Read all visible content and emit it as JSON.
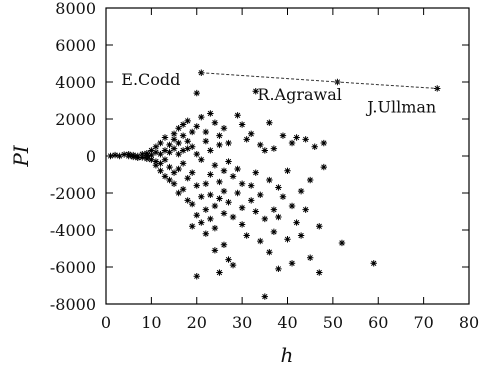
{
  "chart_data": {
    "type": "scatter",
    "title": "",
    "xlabel": "h",
    "ylabel": "PI",
    "xlim": [
      0,
      80
    ],
    "ylim": [
      -8000,
      8000
    ],
    "xticks": [
      0,
      10,
      20,
      30,
      40,
      50,
      60,
      70,
      80
    ],
    "yticks": [
      -8000,
      -6000,
      -4000,
      -2000,
      0,
      2000,
      4000,
      6000,
      8000
    ],
    "grid": false,
    "marker": "asterisk",
    "annotations": [
      {
        "text": "E.Codd",
        "x": 21,
        "y": 4500
      },
      {
        "text": "R.Agrawal",
        "x": 51,
        "y": 4000
      },
      {
        "text": "J.Ullman",
        "x": 73,
        "y": 3650
      }
    ],
    "trend_line": [
      [
        21,
        4500
      ],
      [
        51,
        4000
      ],
      [
        73,
        3650
      ]
    ],
    "points": [
      [
        1,
        0
      ],
      [
        2,
        50
      ],
      [
        3,
        0
      ],
      [
        4,
        80
      ],
      [
        5,
        0
      ],
      [
        5,
        100
      ],
      [
        6,
        -50
      ],
      [
        6,
        50
      ],
      [
        7,
        0
      ],
      [
        7,
        -100
      ],
      [
        8,
        100
      ],
      [
        8,
        -80
      ],
      [
        9,
        0
      ],
      [
        9,
        150
      ],
      [
        9,
        -150
      ],
      [
        10,
        300
      ],
      [
        10,
        -200
      ],
      [
        10,
        50
      ],
      [
        11,
        200
      ],
      [
        11,
        -300
      ],
      [
        11,
        500
      ],
      [
        11,
        -500
      ],
      [
        12,
        100
      ],
      [
        12,
        -400
      ],
      [
        12,
        700
      ],
      [
        12,
        -800
      ],
      [
        13,
        300
      ],
      [
        13,
        -200
      ],
      [
        13,
        1000
      ],
      [
        13,
        -1100
      ],
      [
        14,
        600
      ],
      [
        14,
        -600
      ],
      [
        14,
        200
      ],
      [
        14,
        -1300
      ],
      [
        15,
        900
      ],
      [
        15,
        -900
      ],
      [
        15,
        1200
      ],
      [
        15,
        -1500
      ],
      [
        15,
        400
      ],
      [
        16,
        700
      ],
      [
        16,
        -700
      ],
      [
        16,
        1500
      ],
      [
        16,
        -2000
      ],
      [
        16,
        100
      ],
      [
        17,
        300
      ],
      [
        17,
        -400
      ],
      [
        17,
        1100
      ],
      [
        17,
        -1800
      ],
      [
        17,
        1700
      ],
      [
        18,
        800
      ],
      [
        18,
        -1200
      ],
      [
        18,
        400
      ],
      [
        18,
        -2400
      ],
      [
        18,
        1900
      ],
      [
        19,
        500
      ],
      [
        19,
        -900
      ],
      [
        19,
        1300
      ],
      [
        19,
        -2600
      ],
      [
        19,
        -3800
      ],
      [
        20,
        100
      ],
      [
        20,
        -1600
      ],
      [
        20,
        1600
      ],
      [
        20,
        -3200
      ],
      [
        20,
        3400
      ],
      [
        20,
        -6500
      ],
      [
        21,
        4500
      ],
      [
        21,
        -200
      ],
      [
        21,
        -2200
      ],
      [
        21,
        2100
      ],
      [
        21,
        -3600
      ],
      [
        22,
        800
      ],
      [
        22,
        -1500
      ],
      [
        22,
        -2900
      ],
      [
        22,
        1300
      ],
      [
        22,
        -4200
      ],
      [
        23,
        300
      ],
      [
        23,
        -2100
      ],
      [
        23,
        2300
      ],
      [
        23,
        -3400
      ],
      [
        23,
        -1000
      ],
      [
        24,
        -500
      ],
      [
        24,
        -2700
      ],
      [
        24,
        1800
      ],
      [
        24,
        -3900
      ],
      [
        24,
        -5100
      ],
      [
        25,
        600
      ],
      [
        25,
        -1400
      ],
      [
        25,
        -2300
      ],
      [
        25,
        -6300
      ],
      [
        25,
        1100
      ],
      [
        26,
        -800
      ],
      [
        26,
        -1900
      ],
      [
        26,
        1500
      ],
      [
        26,
        -3100
      ],
      [
        26,
        -4800
      ],
      [
        27,
        -300
      ],
      [
        27,
        -2500
      ],
      [
        27,
        -5600
      ],
      [
        27,
        700
      ],
      [
        28,
        -1100
      ],
      [
        28,
        -3300
      ],
      [
        28,
        -5900
      ],
      [
        29,
        2200
      ],
      [
        29,
        -700
      ],
      [
        29,
        -2000
      ],
      [
        30,
        -1500
      ],
      [
        30,
        -2800
      ],
      [
        30,
        1700
      ],
      [
        30,
        -3700
      ],
      [
        31,
        900
      ],
      [
        31,
        -4300
      ],
      [
        32,
        -2400
      ],
      [
        32,
        1200
      ],
      [
        32,
        -1600
      ],
      [
        33,
        3500
      ],
      [
        33,
        -3000
      ],
      [
        33,
        -900
      ],
      [
        34,
        600
      ],
      [
        34,
        -4600
      ],
      [
        34,
        -2100
      ],
      [
        35,
        -7600
      ],
      [
        35,
        -3400
      ],
      [
        35,
        300
      ],
      [
        36,
        -1300
      ],
      [
        36,
        -5200
      ],
      [
        36,
        1800
      ],
      [
        37,
        -2900
      ],
      [
        37,
        -4100
      ],
      [
        37,
        400
      ],
      [
        38,
        -6100
      ],
      [
        38,
        -1700
      ],
      [
        38,
        -3300
      ],
      [
        39,
        -2200
      ],
      [
        39,
        1100
      ],
      [
        40,
        -4500
      ],
      [
        40,
        -800
      ],
      [
        41,
        -2700
      ],
      [
        41,
        -5800
      ],
      [
        41,
        700
      ],
      [
        42,
        1000
      ],
      [
        42,
        -3600
      ],
      [
        43,
        -1900
      ],
      [
        43,
        -4300
      ],
      [
        44,
        900
      ],
      [
        44,
        -2900
      ],
      [
        45,
        -5500
      ],
      [
        45,
        -1300
      ],
      [
        46,
        500
      ],
      [
        47,
        -6300
      ],
      [
        47,
        -3800
      ],
      [
        48,
        -600
      ],
      [
        48,
        700
      ],
      [
        51,
        4000
      ],
      [
        52,
        -4700
      ],
      [
        59,
        -5800
      ],
      [
        73,
        3650
      ]
    ]
  }
}
